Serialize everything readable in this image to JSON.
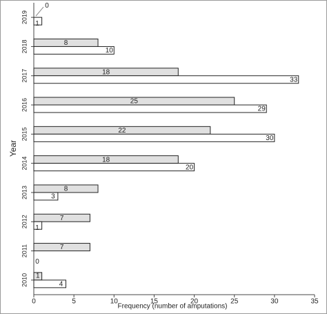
{
  "chart_data": {
    "type": "hbar",
    "xlabel": "Frequency (number of amputations)",
    "ylabel": "Year",
    "categories": [
      "2019",
      "2018",
      "2017",
      "2016",
      "2015",
      "2014",
      "2013",
      "2012",
      "2011",
      "2010"
    ],
    "series": [
      {
        "color": "#e0e0e0",
        "values": [
          0,
          8,
          18,
          25,
          22,
          18,
          8,
          7,
          7,
          1
        ]
      },
      {
        "color": "#ffffff",
        "values": [
          1,
          10,
          33,
          29,
          30,
          20,
          3,
          1,
          0,
          4
        ]
      }
    ],
    "xlim": [
      0,
      35
    ],
    "xticks": [
      0,
      5,
      10,
      15,
      20,
      25,
      30,
      35
    ]
  }
}
